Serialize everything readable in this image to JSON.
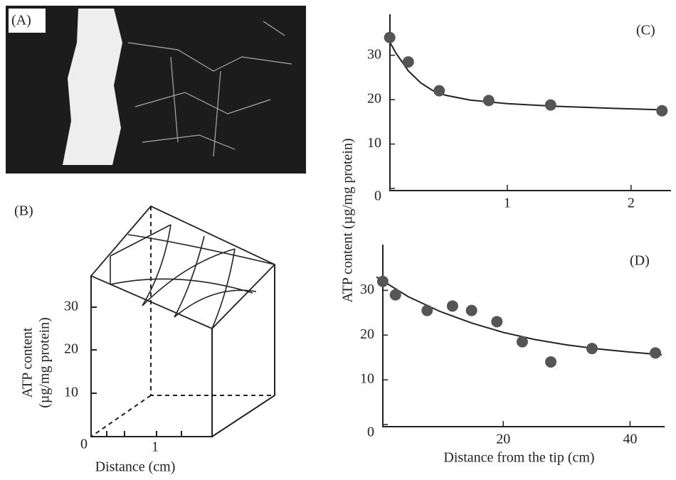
{
  "panel_a": {
    "label": "(A)"
  },
  "panel_b": {
    "label": "(B)",
    "yticks": [
      10,
      20,
      30
    ],
    "xticks": [
      0,
      1
    ],
    "xlabel": "Distance (cm)",
    "ylabel": [
      "ATP  content",
      "(µg/mg protein)"
    ]
  },
  "shared_ylabel": "ATP  content (µg/mg protein)",
  "chart_data": [
    {
      "type": "scatter",
      "label": "(C)",
      "xlim": [
        0,
        2.3
      ],
      "ylim": [
        0,
        37
      ],
      "xticks": [
        1,
        2
      ],
      "yticks": [
        0,
        10,
        20,
        30
      ],
      "x": [
        0.05,
        0.2,
        0.45,
        0.85,
        1.35,
        2.25
      ],
      "values": [
        34,
        28.5,
        22,
        19.8,
        18.8,
        17.5
      ],
      "color": "#555555",
      "fit": {
        "x": [
          0.05,
          0.1,
          0.2,
          0.3,
          0.4,
          0.5,
          0.7,
          1.0,
          1.4,
          1.8,
          2.25
        ],
        "values": [
          33,
          30.5,
          26.5,
          23.8,
          22,
          21,
          19.9,
          19.1,
          18.5,
          18.1,
          17.7
        ]
      }
    },
    {
      "type": "scatter",
      "label": "(D)",
      "xlabel": "Distance from the tip (cm)",
      "xlim": [
        0,
        45
      ],
      "ylim": [
        0,
        38
      ],
      "xticks": [
        20,
        40
      ],
      "yticks": [
        0,
        10,
        20,
        30
      ],
      "x": [
        1,
        3,
        8,
        12,
        15,
        19,
        23,
        27.5,
        34,
        44
      ],
      "values": [
        32,
        29,
        25.5,
        26.5,
        25.5,
        23,
        18.5,
        14,
        17,
        16
      ],
      "color": "#555555",
      "fit": {
        "x": [
          0,
          5,
          10,
          15,
          20,
          25,
          30,
          35,
          40,
          45
        ],
        "values": [
          33,
          28.6,
          25.3,
          22.7,
          20.6,
          19,
          17.8,
          16.9,
          16.2,
          15.6
        ]
      }
    }
  ]
}
